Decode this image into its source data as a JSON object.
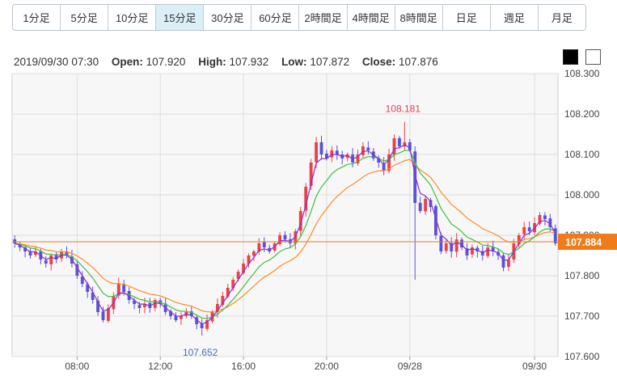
{
  "timeframes": [
    {
      "label": "1分足",
      "active": false
    },
    {
      "label": "5分足",
      "active": false
    },
    {
      "label": "10分足",
      "active": false
    },
    {
      "label": "15分足",
      "active": true
    },
    {
      "label": "30分足",
      "active": false
    },
    {
      "label": "60分足",
      "active": false
    },
    {
      "label": "2時間足",
      "active": false
    },
    {
      "label": "4時間足",
      "active": false
    },
    {
      "label": "8時間足",
      "active": false
    },
    {
      "label": "日足",
      "active": false
    },
    {
      "label": "週足",
      "active": false
    },
    {
      "label": "月足",
      "active": false
    }
  ],
  "ohlc": {
    "datetime": "2019/09/30 07:30",
    "open_label": "Open:",
    "open": "107.920",
    "high_label": "High:",
    "high": "107.932",
    "low_label": "Low:",
    "low": "107.872",
    "close_label": "Close:",
    "close": "107.876"
  },
  "theme_buttons": [
    "dark",
    "light"
  ],
  "colors": {
    "up": "#e8424a",
    "down": "#5a52d8",
    "ma_short": "#8a2fcc",
    "ma_mid": "#3fbf3f",
    "ma_long": "#ff8a2a",
    "current": "#ef7b1a",
    "high_label": "#e8424a",
    "low_label": "#4a6fb8"
  },
  "chart_data": {
    "type": "candlestick",
    "timeframe": "15分足",
    "ylim": [
      107.6,
      108.3
    ],
    "yticks": [
      "107.600",
      "107.700",
      "107.800",
      "107.900",
      "108.000",
      "108.100",
      "108.200",
      "108.300"
    ],
    "xticks": [
      {
        "label": "08:00",
        "index": 12
      },
      {
        "label": "12:00",
        "index": 28
      },
      {
        "label": "16:00",
        "index": 44
      },
      {
        "label": "20:00",
        "index": 60
      },
      {
        "label": "09/28",
        "index": 76
      },
      {
        "label": "09/30",
        "index": 100
      }
    ],
    "current_price": "107.884",
    "high_annotation": {
      "label": "108.181",
      "index": 75,
      "value": 108.181
    },
    "low_annotation": {
      "label": "107.652",
      "index": 36,
      "value": 107.652
    },
    "moving_averages": [
      "short",
      "mid",
      "long"
    ],
    "close_path": [
      107.88,
      107.87,
      107.86,
      107.85,
      107.86,
      107.84,
      107.83,
      107.85,
      107.84,
      107.86,
      107.85,
      107.83,
      107.8,
      107.78,
      107.76,
      107.74,
      107.71,
      107.69,
      107.72,
      107.75,
      107.78,
      107.76,
      107.74,
      107.73,
      107.72,
      107.73,
      107.72,
      107.74,
      107.73,
      107.71,
      107.7,
      107.69,
      107.7,
      107.71,
      107.7,
      107.68,
      107.67,
      107.69,
      107.71,
      107.73,
      107.75,
      107.77,
      107.79,
      107.81,
      107.83,
      107.85,
      107.86,
      107.88,
      107.87,
      107.86,
      107.88,
      107.9,
      107.89,
      107.88,
      107.91,
      107.96,
      108.02,
      108.08,
      108.13,
      108.1,
      108.09,
      108.11,
      108.1,
      108.09,
      108.1,
      108.08,
      108.1,
      108.12,
      108.11,
      108.09,
      108.08,
      108.06,
      108.1,
      108.14,
      108.12,
      108.13,
      108.11,
      107.98,
      107.96,
      107.99,
      107.97,
      107.9,
      107.86,
      107.88,
      107.86,
      107.89,
      107.87,
      107.85,
      107.87,
      107.86,
      107.85,
      107.87,
      107.86,
      107.85,
      107.82,
      107.84,
      107.88,
      107.9,
      107.92,
      107.91,
      107.93,
      107.95,
      107.94,
      107.92,
      107.88
    ]
  }
}
